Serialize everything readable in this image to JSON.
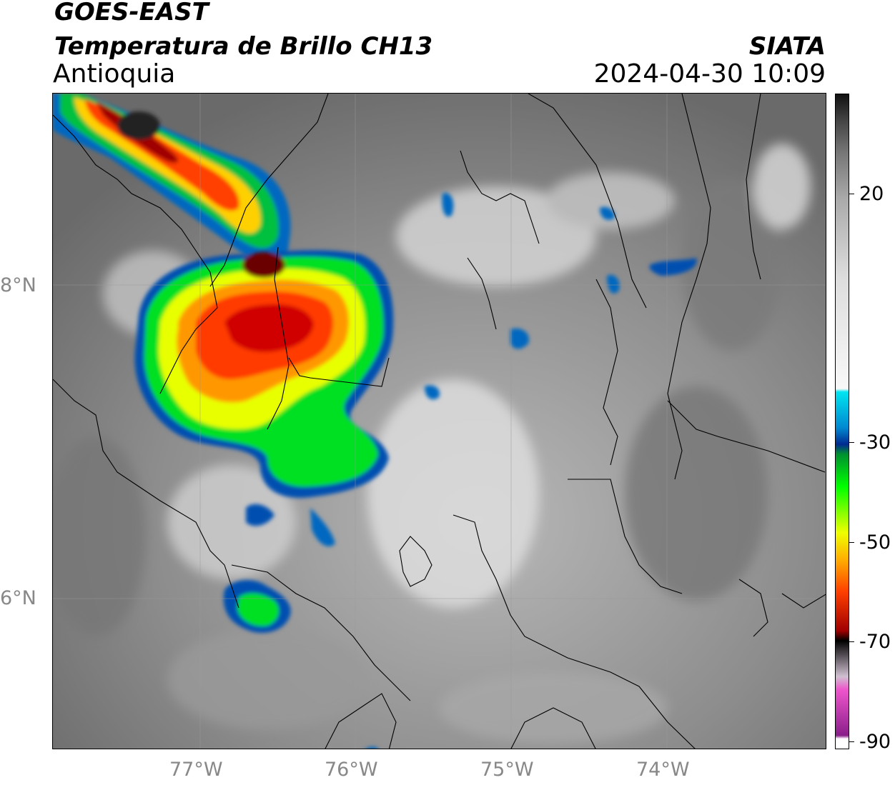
{
  "header": {
    "title_line1": "GOES-EAST",
    "title_line2": "Temperatura de Brillo CH13",
    "subtitle": "Antioquia",
    "credit": "SIATA",
    "timestamp": "2024-04-30 10:09"
  },
  "map": {
    "region": "Antioquia",
    "lat_labels": [
      "8°N",
      "6°N"
    ],
    "lon_labels": [
      "77°W",
      "76°W",
      "75°W",
      "74°W"
    ]
  },
  "colorbar": {
    "labels": [
      "20",
      "-30",
      "-50",
      "-70",
      "-90"
    ],
    "stops": [
      {
        "color": "#111111"
      },
      {
        "color": "#444444"
      },
      {
        "color": "#777777"
      },
      {
        "color": "#aaaaaa"
      },
      {
        "color": "#dddddd"
      },
      {
        "color": "#f8f8f8"
      },
      {
        "color": "#00e4f0"
      },
      {
        "color": "#0088d0"
      },
      {
        "color": "#002a90"
      },
      {
        "color": "#009030"
      },
      {
        "color": "#00ff00"
      },
      {
        "color": "#eeff00"
      },
      {
        "color": "#ffb000"
      },
      {
        "color": "#ff4000"
      },
      {
        "color": "#a00000"
      },
      {
        "color": "#000000"
      },
      {
        "color": "#d0c0d0"
      },
      {
        "color": "#ee55cc"
      },
      {
        "color": "#8a1f8a"
      },
      {
        "color": "#ffffff"
      }
    ]
  }
}
